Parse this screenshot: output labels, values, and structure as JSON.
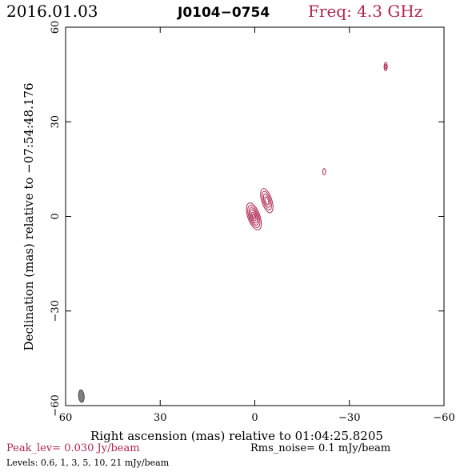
{
  "header": {
    "date": "2016.01.03",
    "source": "J0104−0754",
    "frequency": "Freq: 4.3 GHz"
  },
  "colors": {
    "accent": "#b0264f",
    "contour": "#b0264f",
    "beam": "#808080",
    "axes": "#000000"
  },
  "footer": {
    "peak": "Peak_lev=  0.030 Jy/beam",
    "rms": "Rms_noise=  0.1 mJy/beam",
    "levels": "Levels: 0.6,   1,   3,   5,   10,   21 mJy/beam"
  },
  "chart_data": {
    "type": "contour",
    "xlabel": "Right ascension (mas) relative to 01:04:25.8205",
    "ylabel": "Declination (mas) relative to −07:54:48.176",
    "xlim": [
      60,
      -60
    ],
    "ylim": [
      -60,
      60
    ],
    "x_ticks": [
      60,
      30,
      0,
      -30,
      -60
    ],
    "x_tick_labels": [
      "60",
      "30",
      "0",
      "−30",
      "−60"
    ],
    "y_ticks": [
      -60,
      -30,
      0,
      30,
      60
    ],
    "y_tick_labels": [
      "−60",
      "−30",
      "0",
      "30",
      "60"
    ],
    "contour_levels_mJy": [
      0.6,
      1,
      3,
      5,
      10,
      21
    ],
    "components": [
      {
        "name": "core",
        "x": 0.3,
        "y": 0,
        "contours": [
          {
            "rx": 1.9,
            "ry": 4.5,
            "angle": -20
          },
          {
            "rx": 1.55,
            "ry": 3.7,
            "angle": -20
          },
          {
            "rx": 1.2,
            "ry": 2.9,
            "angle": -20
          },
          {
            "rx": 0.9,
            "ry": 2.2,
            "angle": -20
          },
          {
            "rx": 0.55,
            "ry": 1.4,
            "angle": -20
          },
          {
            "rx": 0.3,
            "ry": 0.7,
            "angle": -20
          }
        ]
      },
      {
        "name": "jet-inner",
        "x": -3.8,
        "y": 5.0,
        "contours": [
          {
            "rx": 1.6,
            "ry": 4.0,
            "angle": -18
          },
          {
            "rx": 1.2,
            "ry": 3.1,
            "angle": -18
          },
          {
            "rx": 0.85,
            "ry": 2.2,
            "angle": -18
          },
          {
            "rx": 0.5,
            "ry": 1.3,
            "angle": -18
          }
        ]
      },
      {
        "name": "jet-knot",
        "x": -22.0,
        "y": 14.2,
        "contours": [
          {
            "rx": 0.45,
            "ry": 1.0,
            "angle": 0
          }
        ]
      },
      {
        "name": "jet-outer",
        "x": -41.5,
        "y": 47.5,
        "contours": [
          {
            "rx": 0.5,
            "ry": 1.3,
            "angle": 0
          },
          {
            "rx": 0.25,
            "ry": 0.7,
            "angle": 0
          }
        ]
      }
    ],
    "beam": {
      "x": 55.0,
      "y": -57.0,
      "rx": 0.9,
      "ry": 2.0,
      "angle": -5
    }
  }
}
